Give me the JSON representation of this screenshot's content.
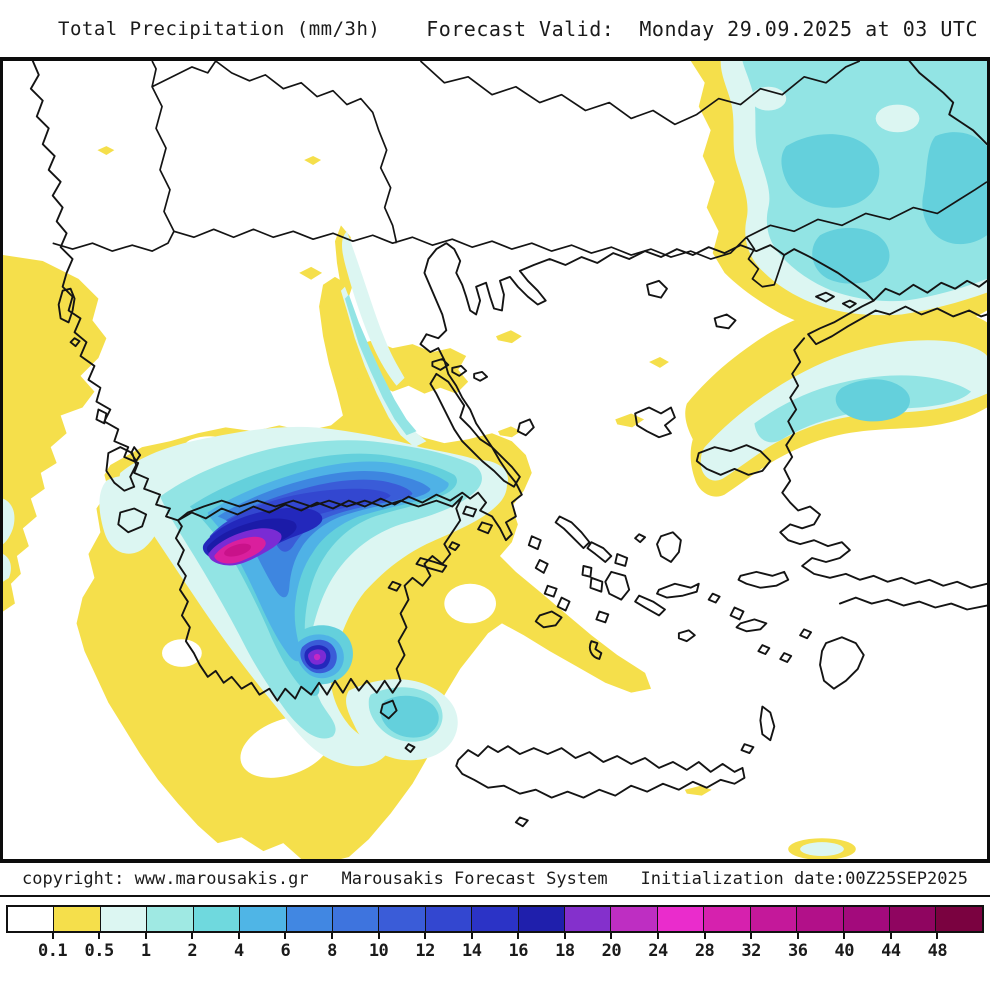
{
  "header": {
    "product_title": "Total Precipitation (mm/3h)",
    "forecast_valid": "Forecast Valid:  Monday 29.09.2025 at 03 UTC"
  },
  "footer": {
    "copyright": "copyright: www.marousakis.gr",
    "system_name": "Marousakis Forecast System",
    "initialization": "Initialization date:00Z25SEP2025"
  },
  "legend": {
    "labels": [
      "0.1",
      "0.5",
      "1",
      "2",
      "4",
      "6",
      "8",
      "10",
      "12",
      "14",
      "16",
      "18",
      "20",
      "24",
      "28",
      "32",
      "36",
      "40",
      "44",
      "48"
    ],
    "colors": [
      "#ffffff",
      "#f5df4b",
      "#dcf6f2",
      "#9fe9e3",
      "#6fd9de",
      "#4fb5e6",
      "#4187e2",
      "#3e74de",
      "#3a5cd8",
      "#3347d0",
      "#2b33c6",
      "#1f1fac",
      "#8430cc",
      "#be2ec2",
      "#ea2ccc",
      "#d621ae",
      "#c4189a",
      "#b21089",
      "#a30a7c",
      "#8f0560",
      "#7a0240"
    ]
  },
  "chart_data": {
    "type": "heatmap",
    "subtype": "filled-contour precipitation forecast map",
    "title": "Total Precipitation (mm/3h)",
    "region": "Greece, Aegean Sea and surrounding Balkans / western Turkey",
    "forecast_valid": "Monday 29.09.2025 at 03 UTC",
    "initialization": "00Z25SEP2025",
    "unit": "mm/3h",
    "legend_position": "bottom",
    "scale_values": [
      0.1,
      0.5,
      1,
      2,
      4,
      6,
      8,
      10,
      12,
      14,
      16,
      18,
      20,
      24,
      28,
      32,
      36,
      40,
      44,
      48
    ],
    "scale_colors": [
      "#ffffff",
      "#f5df4b",
      "#dcf6f2",
      "#9fe9e3",
      "#6fd9de",
      "#4fb5e6",
      "#4187e2",
      "#3e74de",
      "#3a5cd8",
      "#3347d0",
      "#2b33c6",
      "#1f1fac",
      "#8430cc",
      "#be2ec2",
      "#ea2ccc",
      "#d621ae",
      "#c4189a",
      "#b21089",
      "#a30a7c",
      "#8f0560",
      "#7a0240"
    ],
    "features": [
      {
        "name": "main storm band",
        "location": "Gulf of Patras / northern Peloponnese extending NE toward Attica",
        "max_value_mm": 30,
        "core_color": "#da1f9d"
      },
      {
        "name": "secondary core",
        "location": "sea south of Peloponnese near Kythira",
        "max_value_mm": 22,
        "core_color": "#7a2bd4"
      },
      {
        "name": "light rain shield",
        "location": "Ionian Sea and sea SW/S of Peloponnese",
        "value_range_mm": "0.1-1"
      },
      {
        "name": "northeastern system",
        "location": "Thrace / Sea of Marmara / SW Black Sea",
        "value_range_mm": "0.5-4"
      },
      {
        "name": "band along central Greece",
        "location": "Thermaic Gulf to Euboea and Attica",
        "value_range_mm": "0.1-2"
      }
    ]
  }
}
